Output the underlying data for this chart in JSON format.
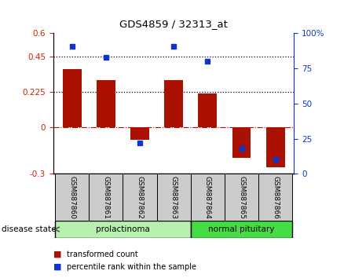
{
  "title": "GDS4859 / 32313_at",
  "samples": [
    "GSM887860",
    "GSM887861",
    "GSM887862",
    "GSM887863",
    "GSM887864",
    "GSM887865",
    "GSM887866"
  ],
  "transformed_count": [
    0.37,
    0.3,
    -0.08,
    0.3,
    0.215,
    -0.2,
    -0.26
  ],
  "percentile_rank": [
    91,
    83,
    22,
    91,
    80,
    18,
    10
  ],
  "groups": [
    {
      "label": "prolactinoma",
      "indices": [
        0,
        1,
        2,
        3
      ],
      "color": "#b8f0b0"
    },
    {
      "label": "normal pituitary",
      "indices": [
        4,
        5,
        6
      ],
      "color": "#44dd44"
    }
  ],
  "bar_color": "#aa1100",
  "dot_color": "#1133cc",
  "ylim_left": [
    -0.3,
    0.6
  ],
  "ylim_right": [
    0,
    100
  ],
  "yticks_left": [
    -0.3,
    0,
    0.225,
    0.45,
    0.6
  ],
  "yticks_right": [
    0,
    25,
    50,
    75,
    100
  ],
  "hlines": [
    0.225,
    0.45
  ],
  "background_color": "#ffffff",
  "legend_labels": [
    "transformed count",
    "percentile rank within the sample"
  ],
  "disease_state_label": "disease state"
}
